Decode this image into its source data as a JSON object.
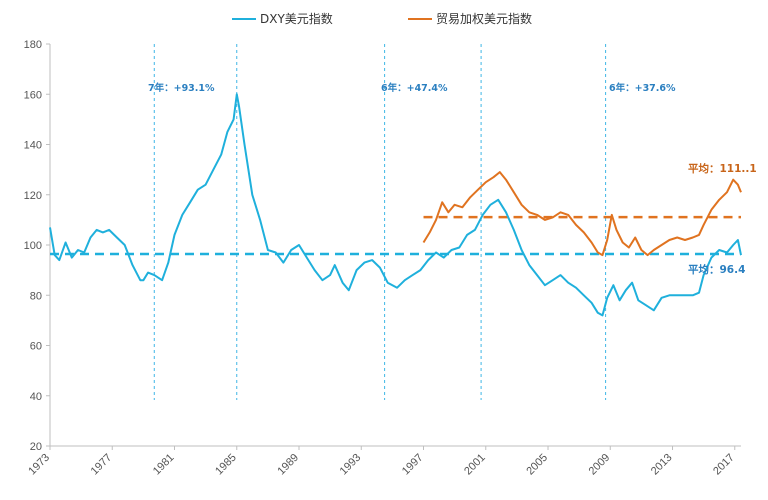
{
  "chart_data": {
    "type": "line",
    "title": "",
    "xlabel": "",
    "ylabel": "",
    "xlim": [
      1973,
      2017.4
    ],
    "ylim": [
      20,
      180
    ],
    "y_ticks": [
      "20",
      "40",
      "60",
      "80",
      "100",
      "120",
      "140",
      "160",
      "180"
    ],
    "x_ticks": [
      "1973",
      "1977",
      "1981",
      "1985",
      "1989",
      "1993",
      "1997",
      "2001",
      "2005",
      "2009",
      "2013",
      "2017"
    ],
    "grid": false,
    "legend_position": "top-center",
    "series": [
      {
        "name": "DXY美元指数",
        "color": "#1fb0dc",
        "x": [
          1973.0,
          1973.3,
          1973.6,
          1974.0,
          1974.4,
          1974.8,
          1975.2,
          1975.6,
          1976.0,
          1976.4,
          1976.8,
          1977.3,
          1977.8,
          1978.3,
          1978.8,
          1979.0,
          1979.3,
          1979.7,
          1980.2,
          1980.6,
          1981.0,
          1981.5,
          1982.0,
          1982.5,
          1983.0,
          1983.5,
          1984.0,
          1984.4,
          1984.8,
          1985.0,
          1985.15,
          1985.5,
          1986.0,
          1986.5,
          1987.0,
          1987.5,
          1988.0,
          1988.5,
          1989.0,
          1989.5,
          1990.0,
          1990.5,
          1991.0,
          1991.3,
          1991.8,
          1992.2,
          1992.7,
          1993.2,
          1993.7,
          1994.2,
          1994.7,
          1995.3,
          1995.8,
          1996.3,
          1996.8,
          1997.3,
          1997.8,
          1998.3,
          1998.8,
          1999.3,
          1999.8,
          2000.3,
          2000.8,
          2001.3,
          2001.8,
          2002.3,
          2002.8,
          2003.3,
          2003.8,
          2004.3,
          2004.8,
          2005.3,
          2005.8,
          2006.3,
          2006.8,
          2007.3,
          2007.8,
          2008.2,
          2008.5,
          2008.8,
          2009.2,
          2009.6,
          2010.0,
          2010.4,
          2010.8,
          2011.3,
          2011.8,
          2012.3,
          2012.8,
          2013.3,
          2013.8,
          2014.3,
          2014.7,
          2015.0,
          2015.5,
          2016.0,
          2016.5,
          2016.9,
          2017.2,
          2017.4
        ],
        "values": [
          107,
          96,
          94,
          101,
          95,
          98,
          97,
          103,
          106,
          105,
          106,
          103,
          100,
          92,
          86,
          86,
          89,
          88,
          86,
          93,
          104,
          112,
          117,
          122,
          124,
          130,
          136,
          145,
          150,
          160,
          155,
          140,
          120,
          110,
          98,
          97,
          93,
          98,
          100,
          95,
          90,
          86,
          88,
          92,
          85,
          82,
          90,
          93,
          94,
          91,
          85,
          83,
          86,
          88,
          90,
          94,
          97,
          95,
          98,
          99,
          104,
          106,
          112,
          116,
          118,
          113,
          106,
          98,
          92,
          88,
          84,
          86,
          88,
          85,
          83,
          80,
          77,
          73,
          72,
          79,
          84,
          78,
          82,
          85,
          78,
          76,
          74,
          79,
          80,
          80,
          80,
          80,
          81,
          88,
          95,
          98,
          97,
          100,
          102,
          96
        ]
      },
      {
        "name": "贸易加权美元指数",
        "color": "#e07320",
        "x": [
          1997.0,
          1997.4,
          1997.8,
          1998.2,
          1998.6,
          1999.0,
          1999.5,
          2000.0,
          2000.5,
          2001.0,
          2001.5,
          2001.9,
          2002.3,
          2002.8,
          2003.3,
          2003.8,
          2004.3,
          2004.8,
          2005.3,
          2005.8,
          2006.3,
          2006.8,
          2007.3,
          2007.8,
          2008.2,
          2008.5,
          2008.8,
          2009.1,
          2009.4,
          2009.8,
          2010.2,
          2010.6,
          2011.0,
          2011.4,
          2011.8,
          2012.3,
          2012.8,
          2013.3,
          2013.8,
          2014.3,
          2014.7,
          2015.0,
          2015.5,
          2016.0,
          2016.5,
          2016.9,
          2017.2,
          2017.4
        ],
        "values": [
          101,
          105,
          110,
          117,
          113,
          116,
          115,
          119,
          122,
          125,
          127,
          129,
          126,
          121,
          116,
          113,
          112,
          110,
          111,
          113,
          112,
          108,
          105,
          101,
          97,
          96,
          102,
          112,
          106,
          101,
          99,
          103,
          98,
          96,
          98,
          100,
          102,
          103,
          102,
          103,
          104,
          108,
          114,
          118,
          121,
          126,
          124,
          121
        ]
      }
    ],
    "reference_lines": [
      {
        "label": "平均：111..1",
        "value": 111.1,
        "color": "#e07320"
      },
      {
        "label": "平均：96.4",
        "value": 96.4,
        "color": "#1fb0dc"
      }
    ],
    "annotations": [
      {
        "text": "7年：+93.1%",
        "x": 1978.8
      },
      {
        "text": "6年：+47.4%",
        "x": 1994.0
      },
      {
        "text": "6年：+37.6%",
        "x": 2008.0
      }
    ],
    "vertical_markers": [
      1979.7,
      1985.0,
      1994.5,
      2000.7,
      2008.7
    ]
  }
}
